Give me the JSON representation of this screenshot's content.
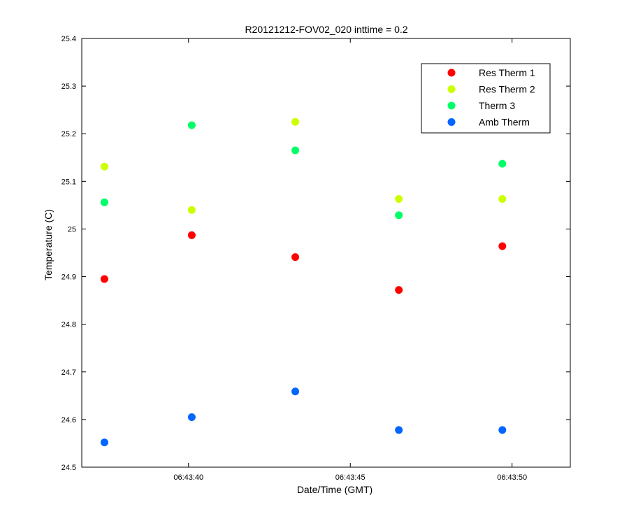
{
  "chart_data": {
    "type": "scatter",
    "title": "R20121212-FOV02_020 inttime = 0.2",
    "xlabel": "Date/Time (GMT)",
    "ylabel": "Temperature (C)",
    "x_unit": "seconds of 06:43",
    "xlim": [
      36.7,
      51.8
    ],
    "ylim": [
      24.5,
      25.4
    ],
    "x_ticks": [
      {
        "value": 40,
        "label": "06:43:40"
      },
      {
        "value": 45,
        "label": "06:43:45"
      },
      {
        "value": 50,
        "label": "06:43:50"
      }
    ],
    "y_ticks": [
      {
        "value": 24.5,
        "label": "24.5"
      },
      {
        "value": 24.6,
        "label": "24.6"
      },
      {
        "value": 24.7,
        "label": "24.7"
      },
      {
        "value": 24.8,
        "label": "24.8"
      },
      {
        "value": 24.9,
        "label": "24.9"
      },
      {
        "value": 25.0,
        "label": "25"
      },
      {
        "value": 25.1,
        "label": "25.1"
      },
      {
        "value": 25.2,
        "label": "25.2"
      },
      {
        "value": 25.3,
        "label": "25.3"
      },
      {
        "value": 25.4,
        "label": "25.4"
      }
    ],
    "x": [
      37.4,
      40.1,
      43.3,
      46.5,
      49.7
    ],
    "series": [
      {
        "name": "Res Therm 1",
        "color": "#ff0000",
        "values": [
          24.895,
          24.987,
          24.941,
          24.872,
          24.964
        ]
      },
      {
        "name": "Res Therm 2",
        "color": "#ccff00",
        "values": [
          25.131,
          25.04,
          25.225,
          25.063,
          25.063
        ]
      },
      {
        "name": "Therm 3",
        "color": "#00ff66",
        "values": [
          25.056,
          25.218,
          25.165,
          25.029,
          25.137
        ]
      },
      {
        "name": "Amb Therm",
        "color": "#0066ff",
        "values": [
          24.552,
          24.605,
          24.659,
          24.578,
          24.578
        ]
      }
    ],
    "grid": false,
    "legend_position": "top-right"
  }
}
